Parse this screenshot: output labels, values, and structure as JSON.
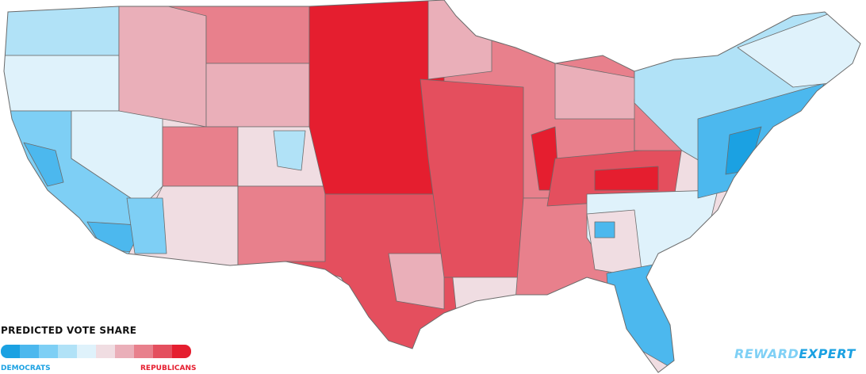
{
  "legend": {
    "title": "PREDICTED VOTE SHARE",
    "colors": [
      "#1ba1e2",
      "#4cb8ee",
      "#7ecff5",
      "#b1e2f7",
      "#dff2fb",
      "#f0dde2",
      "#eaafb9",
      "#e8808c",
      "#e44f5e",
      "#e51e2f"
    ],
    "left_label": "DEMOCRATS",
    "right_label": "REPUBLICANS"
  },
  "logo": {
    "first": "REWARD",
    "second": "EXPERT"
  }
}
